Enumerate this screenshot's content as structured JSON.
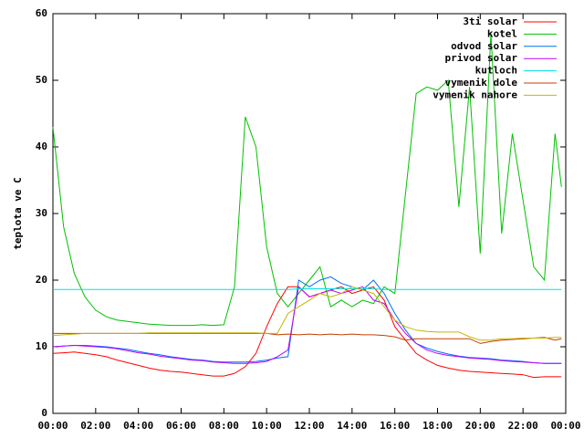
{
  "chart_data": {
    "type": "line",
    "ylabel": "teplota ve C",
    "xlim": [
      0,
      24
    ],
    "xticks": [
      {
        "value": 0,
        "label": "00:00"
      },
      {
        "value": 2,
        "label": "02:00"
      },
      {
        "value": 4,
        "label": "04:00"
      },
      {
        "value": 6,
        "label": "06:00"
      },
      {
        "value": 8,
        "label": "08:00"
      },
      {
        "value": 10,
        "label": "10:00"
      },
      {
        "value": 12,
        "label": "12:00"
      },
      {
        "value": 14,
        "label": "14:00"
      },
      {
        "value": 16,
        "label": "16:00"
      },
      {
        "value": 18,
        "label": "18:00"
      },
      {
        "value": 20,
        "label": "20:00"
      },
      {
        "value": 22,
        "label": "22:00"
      },
      {
        "value": 24,
        "label": "00:00"
      }
    ],
    "ylim": [
      0,
      60
    ],
    "yticks": [
      0,
      10,
      20,
      30,
      40,
      50,
      60
    ],
    "legend": "top-right",
    "x": [
      0,
      0.5,
      1,
      1.5,
      2,
      2.5,
      3,
      3.5,
      4,
      4.5,
      5,
      5.5,
      6,
      6.5,
      7,
      7.5,
      8,
      8.5,
      9,
      9.5,
      10,
      10.5,
      11,
      11.5,
      12,
      12.5,
      13,
      13.5,
      14,
      14.5,
      15,
      15.5,
      16,
      16.5,
      17,
      17.5,
      18,
      18.5,
      19,
      19.5,
      20,
      20.5,
      21,
      21.5,
      22,
      22.5,
      23,
      23.5,
      23.8
    ],
    "series": [
      {
        "name": "3ti solar",
        "color": "#ff0000",
        "values": [
          9,
          9.1,
          9.2,
          9,
          8.8,
          8.5,
          8,
          7.6,
          7.2,
          6.8,
          6.5,
          6.3,
          6.2,
          6,
          5.8,
          5.6,
          5.6,
          6,
          7,
          9,
          13,
          16.5,
          19,
          19,
          17.5,
          18,
          18.5,
          19,
          18,
          18.5,
          19,
          17,
          13,
          11,
          9,
          8,
          7.2,
          6.8,
          6.5,
          6.3,
          6.2,
          6.1,
          6,
          5.9,
          5.8,
          5.4,
          5.5,
          5.5,
          5.5
        ]
      },
      {
        "name": "kotel",
        "color": "#00c000",
        "values": [
          43,
          28,
          21,
          17.5,
          15.5,
          14.5,
          14,
          13.8,
          13.6,
          13.4,
          13.3,
          13.2,
          13.2,
          13.2,
          13.3,
          13.2,
          13.3,
          19,
          44.5,
          40,
          25,
          18,
          16,
          18,
          20,
          22,
          16,
          17,
          16,
          17,
          16.5,
          19,
          18,
          33,
          48,
          49,
          48.5,
          50,
          31,
          49,
          24,
          57,
          27,
          42,
          32,
          22,
          20,
          42,
          34
        ]
      },
      {
        "name": "odvod solar",
        "color": "#0070f0",
        "values": [
          10,
          10.1,
          10.2,
          10.2,
          10.1,
          10,
          9.8,
          9.6,
          9.3,
          9,
          8.8,
          8.5,
          8.3,
          8.1,
          8,
          7.8,
          7.7,
          7.7,
          7.7,
          7.8,
          8,
          8.3,
          8.5,
          20,
          19,
          20,
          20.5,
          19.5,
          19,
          18.5,
          20,
          18,
          15,
          12.5,
          10.5,
          9.8,
          9.3,
          8.9,
          8.6,
          8.4,
          8.3,
          8.2,
          8,
          7.9,
          7.8,
          7.6,
          7.5,
          7.5,
          7.5
        ]
      },
      {
        "name": "privod solar",
        "color": "#c000ff",
        "values": [
          10,
          10.1,
          10.2,
          10.1,
          10,
          9.9,
          9.7,
          9.4,
          9.1,
          8.9,
          8.6,
          8.4,
          8.2,
          8,
          7.9,
          7.7,
          7.6,
          7.5,
          7.5,
          7.6,
          7.8,
          8.5,
          9.5,
          19,
          17.5,
          18,
          18.5,
          18,
          18.5,
          19,
          17,
          16.5,
          14,
          12,
          10.5,
          9.5,
          9,
          8.7,
          8.5,
          8.3,
          8.2,
          8.1,
          7.9,
          7.8,
          7.7,
          7.6,
          7.5,
          7.5,
          7.5
        ]
      },
      {
        "name": "kutloch",
        "color": "#00e0e0",
        "values": [
          18.6,
          18.6,
          18.6,
          18.6,
          18.6,
          18.6,
          18.6,
          18.6,
          18.6,
          18.6,
          18.6,
          18.6,
          18.6,
          18.6,
          18.6,
          18.6,
          18.6,
          18.6,
          18.6,
          18.6,
          18.6,
          18.6,
          18.6,
          18.7,
          18.7,
          18.7,
          18.7,
          18.7,
          18.7,
          18.7,
          18.7,
          18.6,
          18.6,
          18.6,
          18.6,
          18.6,
          18.6,
          18.6,
          18.6,
          18.6,
          18.6,
          18.6,
          18.6,
          18.6,
          18.6,
          18.6,
          18.6,
          18.6,
          18.6
        ]
      },
      {
        "name": "vymenik dole",
        "color": "#c04000",
        "values": [
          12,
          12,
          12,
          12,
          12,
          12,
          12,
          12,
          12,
          12,
          12,
          12,
          12,
          12,
          12,
          12,
          12,
          12,
          12,
          12,
          12,
          11.8,
          11.9,
          11.8,
          11.9,
          11.8,
          11.9,
          11.8,
          11.9,
          11.8,
          11.8,
          11.7,
          11.5,
          11,
          11.2,
          11.2,
          11.2,
          11.2,
          11.2,
          11.2,
          10.5,
          10.8,
          11,
          11.1,
          11.2,
          11.3,
          11.4,
          11,
          11.2
        ]
      },
      {
        "name": "vymenik nahore",
        "color": "#c8b400",
        "values": [
          11.7,
          11.8,
          11.9,
          12,
          12,
          12,
          12,
          12,
          12,
          12.1,
          12.1,
          12.1,
          12.1,
          12.1,
          12.1,
          12.1,
          12.1,
          12.1,
          12.1,
          12.1,
          12,
          12,
          15,
          16,
          17,
          18,
          17.5,
          18,
          19,
          18.5,
          18,
          16,
          14,
          13,
          12.5,
          12.3,
          12.2,
          12.2,
          12.2,
          11.5,
          11,
          11,
          11.2,
          11.2,
          11.3,
          11.3,
          11.3,
          11.4,
          11.4
        ]
      }
    ]
  }
}
